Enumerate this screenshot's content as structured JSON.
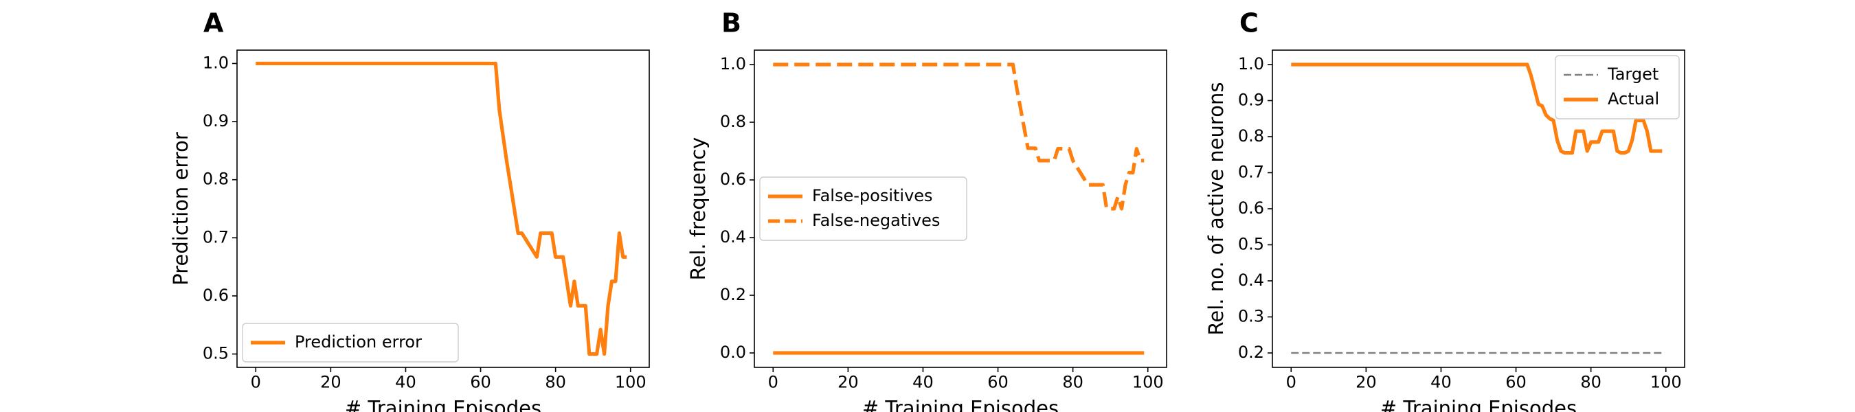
{
  "colors": {
    "series": "#ff7f0e",
    "target": "#808080",
    "frame": "#000000",
    "legend_border": "#cccccc"
  },
  "chart_data": [
    {
      "type": "line",
      "panel_label": "A",
      "xlabel": "# Training Episodes",
      "ylabel": "Prediction error",
      "xlim": [
        -5,
        105
      ],
      "ylim": [
        0.477,
        1.023
      ],
      "xticks": [
        0,
        20,
        40,
        60,
        80,
        100
      ],
      "yticks": [
        0.5,
        0.6,
        0.7,
        0.8,
        0.9,
        1.0
      ],
      "ytick_labels": [
        "0.5",
        "0.6",
        "0.7",
        "0.8",
        "0.9",
        "1.0"
      ],
      "legend": {
        "placement": "lower-left"
      },
      "series": [
        {
          "name": "Prediction error",
          "style": "solid",
          "color": "#ff7f0e",
          "x": [
            0,
            64,
            65,
            67,
            68,
            70,
            71,
            75,
            76,
            79,
            80,
            82,
            84,
            85,
            86,
            88,
            89,
            91,
            92,
            93,
            94,
            95,
            96,
            97,
            98,
            99
          ],
          "y": [
            1.0,
            1.0,
            0.92,
            0.83,
            0.79,
            0.708,
            0.708,
            0.667,
            0.708,
            0.708,
            0.667,
            0.667,
            0.583,
            0.625,
            0.583,
            0.583,
            0.5,
            0.5,
            0.542,
            0.5,
            0.583,
            0.625,
            0.625,
            0.708,
            0.667,
            0.667
          ]
        }
      ]
    },
    {
      "type": "line",
      "panel_label": "B",
      "xlabel": "# Training Episodes",
      "ylabel": "Rel. frequency",
      "xlim": [
        -5,
        105
      ],
      "ylim": [
        -0.05,
        1.05
      ],
      "xticks": [
        0,
        20,
        40,
        60,
        80,
        100
      ],
      "yticks": [
        0.0,
        0.2,
        0.4,
        0.6,
        0.8,
        1.0
      ],
      "ytick_labels": [
        "0.0",
        "0.2",
        "0.4",
        "0.6",
        "0.8",
        "1.0"
      ],
      "legend": {
        "placement": "center-left"
      },
      "series": [
        {
          "name": "False-positives",
          "style": "solid",
          "color": "#ff7f0e",
          "x": [
            0,
            99
          ],
          "y": [
            0.0,
            0.0
          ]
        },
        {
          "name": "False-negatives",
          "style": "dashed",
          "color": "#ff7f0e",
          "x": [
            0,
            64,
            65,
            67,
            68,
            70,
            71,
            75,
            76,
            79,
            80,
            82,
            84,
            85,
            86,
            88,
            89,
            91,
            92,
            93,
            94,
            95,
            96,
            97,
            98,
            99
          ],
          "y": [
            1.0,
            1.0,
            0.92,
            0.78,
            0.71,
            0.71,
            0.667,
            0.667,
            0.708,
            0.708,
            0.667,
            0.625,
            0.583,
            0.583,
            0.583,
            0.583,
            0.5,
            0.5,
            0.542,
            0.5,
            0.583,
            0.625,
            0.625,
            0.708,
            0.667,
            0.667
          ]
        }
      ]
    },
    {
      "type": "line",
      "panel_label": "C",
      "xlabel": "# Training Episodes",
      "ylabel": "Rel. no. of active neurons",
      "xlim": [
        -5,
        105
      ],
      "ylim": [
        0.16,
        1.04
      ],
      "xticks": [
        0,
        20,
        40,
        60,
        80,
        100
      ],
      "yticks": [
        0.2,
        0.3,
        0.4,
        0.5,
        0.6,
        0.7,
        0.8,
        0.9,
        1.0
      ],
      "ytick_labels": [
        "0.2",
        "0.3",
        "0.4",
        "0.5",
        "0.6",
        "0.7",
        "0.8",
        "0.9",
        "1.0"
      ],
      "legend": {
        "placement": "top-right"
      },
      "series": [
        {
          "name": "Target",
          "style": "dashed-thin",
          "color": "#808080",
          "x": [
            0,
            99
          ],
          "y": [
            0.2,
            0.2
          ]
        },
        {
          "name": "Actual",
          "style": "solid",
          "color": "#ff7f0e",
          "x": [
            0,
            63,
            64,
            65,
            66,
            67,
            68,
            69,
            70,
            71,
            72,
            73,
            74,
            75,
            76,
            77,
            78,
            79,
            80,
            81,
            82,
            83,
            84,
            85,
            86,
            87,
            88,
            89,
            90,
            91,
            92,
            93,
            94,
            95,
            96,
            97,
            98,
            99
          ],
          "y": [
            1.0,
            1.0,
            0.97,
            0.93,
            0.89,
            0.885,
            0.86,
            0.85,
            0.845,
            0.79,
            0.76,
            0.755,
            0.755,
            0.755,
            0.815,
            0.815,
            0.815,
            0.76,
            0.785,
            0.785,
            0.785,
            0.815,
            0.815,
            0.815,
            0.815,
            0.76,
            0.755,
            0.755,
            0.76,
            0.79,
            0.845,
            0.845,
            0.845,
            0.815,
            0.76,
            0.76,
            0.76,
            0.76
          ]
        }
      ]
    }
  ]
}
